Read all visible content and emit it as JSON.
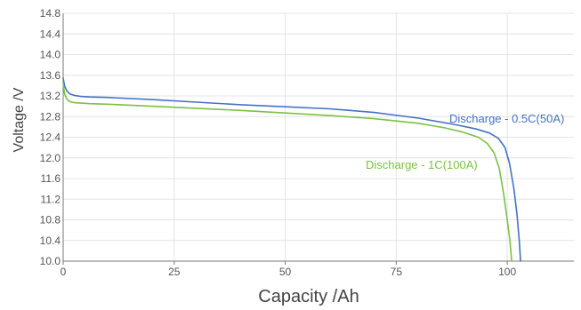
{
  "chart_data": {
    "type": "line",
    "xlabel": "Capacity  /Ah",
    "ylabel": "Voltage  /V",
    "xlim": [
      0,
      115
    ],
    "ylim": [
      10.0,
      14.8
    ],
    "x_ticks": [
      0,
      25,
      50,
      75,
      100
    ],
    "x_tick_labels": [
      "0",
      "25",
      "50",
      "75",
      "100"
    ],
    "y_ticks": [
      10.0,
      10.4,
      10.8,
      11.2,
      11.6,
      12.0,
      12.4,
      12.8,
      13.2,
      13.6,
      14.0,
      14.4,
      14.8
    ],
    "y_tick_labels": [
      "10.0",
      "10.4",
      "10.8",
      "11.2",
      "11.6",
      "12.0",
      "12.4",
      "12.8",
      "13.2",
      "13.6",
      "14.0",
      "14.4",
      "14.8"
    ],
    "grid": true,
    "legend": "inline-labels",
    "series": [
      {
        "name": "Discharge - 0.5C(50A)",
        "color": "#4472c4",
        "x": [
          0,
          0.3,
          0.8,
          1.5,
          2.5,
          4,
          6,
          10,
          20,
          30,
          40,
          50,
          60,
          70,
          80,
          88,
          93,
          96,
          98,
          99.5,
          100.5,
          101.5,
          102.2,
          102.7,
          103.0
        ],
        "y": [
          13.55,
          13.4,
          13.3,
          13.24,
          13.21,
          13.19,
          13.18,
          13.17,
          13.13,
          13.08,
          13.03,
          12.99,
          12.95,
          12.88,
          12.77,
          12.65,
          12.56,
          12.48,
          12.38,
          12.2,
          11.9,
          11.4,
          10.9,
          10.4,
          10.0
        ]
      },
      {
        "name": "Discharge - 1C(100A)",
        "color": "#7ac143",
        "x": [
          0,
          0.3,
          0.8,
          1.5,
          2.5,
          4,
          6,
          10,
          20,
          30,
          40,
          50,
          60,
          70,
          80,
          86,
          90,
          93.5,
          95.5,
          97,
          98.2,
          99.2,
          100.0,
          100.6,
          101.0
        ],
        "y": [
          13.45,
          13.25,
          13.14,
          13.09,
          13.07,
          13.06,
          13.05,
          13.04,
          13.0,
          12.96,
          12.92,
          12.87,
          12.82,
          12.76,
          12.67,
          12.58,
          12.5,
          12.4,
          12.28,
          12.1,
          11.8,
          11.3,
          10.8,
          10.4,
          10.0
        ]
      }
    ]
  }
}
